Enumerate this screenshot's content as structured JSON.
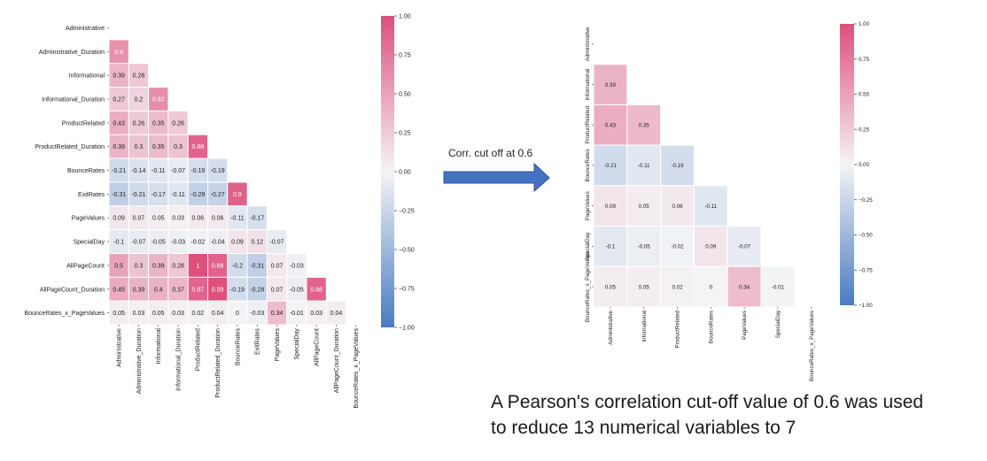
{
  "arrow_label": "Corr. cut off at 0.6",
  "caption": {
    "line1": "A Pearson's correlation cut-off value of 0.6 was used",
    "line2": "to reduce 13 numerical variables to 7"
  },
  "colors": {
    "negative": "#4a7bc0",
    "neutral": "#f4f4f6",
    "positive": "#de4f7c",
    "arrow": "#4472c4",
    "arrow_edge": "#2f528f"
  },
  "chart_data": [
    {
      "type": "heatmap",
      "variables": [
        "Administrative",
        "Administrative_Duration",
        "Informational",
        "Informational_Duration",
        "ProductRelated",
        "ProductRelated_Duration",
        "BounceRates",
        "ExitRates",
        "PageValues",
        "SpecialDay",
        "AllPageCount",
        "AllPageCount_Duration",
        "BounceRates_x_PageValues"
      ],
      "mask": "upper-triangle",
      "values": [
        [],
        [
          0.6
        ],
        [
          0.39,
          0.28
        ],
        [
          0.27,
          0.2,
          0.62
        ],
        [
          0.43,
          0.26,
          0.35,
          0.26
        ],
        [
          0.39,
          0.3,
          0.35,
          0.3,
          0.88
        ],
        [
          -0.21,
          -0.14,
          -0.11,
          -0.07,
          -0.19,
          -0.19
        ],
        [
          -0.31,
          -0.21,
          -0.17,
          -0.11,
          -0.29,
          -0.27,
          0.9
        ],
        [
          0.09,
          0.07,
          0.05,
          0.03,
          0.06,
          0.06,
          -0.11,
          -0.17
        ],
        [
          -0.1,
          -0.07,
          -0.05,
          -0.03,
          -0.02,
          -0.04,
          0.09,
          0.12,
          -0.07
        ],
        [
          0.5,
          0.3,
          0.39,
          0.28,
          1,
          0.88,
          -0.2,
          -0.31,
          0.07,
          -0.03
        ],
        [
          0.45,
          0.39,
          0.4,
          0.37,
          0.87,
          0.99,
          -0.19,
          -0.28,
          0.07,
          -0.05,
          0.88
        ],
        [
          0.05,
          0.03,
          0.05,
          0.03,
          0.02,
          0.04,
          0,
          -0.03,
          0.34,
          -0.01,
          0.03,
          0.04
        ]
      ],
      "colorbar": {
        "ticks": [
          "1.00",
          "0.75",
          "0.50",
          "0.25",
          "0.00",
          "−0.25",
          "−0.50",
          "−0.75",
          "−1.00"
        ],
        "range": [
          -1,
          1
        ]
      }
    },
    {
      "type": "heatmap",
      "variables": [
        "Administrative",
        "Informational",
        "ProductRelated",
        "BounceRates",
        "PageValues",
        "SpecialDay",
        "BounceRates_x_PageValues"
      ],
      "mask": "upper-triangle",
      "values": [
        [],
        [
          0.39
        ],
        [
          0.43,
          0.35
        ],
        [
          -0.21,
          -0.11,
          -0.19
        ],
        [
          0.09,
          0.05,
          0.06,
          -0.11
        ],
        [
          -0.1,
          -0.05,
          -0.02,
          0.09,
          -0.07
        ],
        [
          0.05,
          0.05,
          0.02,
          0,
          0.34,
          -0.01
        ]
      ],
      "colorbar": {
        "ticks": [
          "1.00",
          "0.75",
          "0.50",
          "0.25",
          "0.00",
          "−0.25",
          "−0.50",
          "−0.75",
          "−1.00"
        ],
        "range": [
          -1,
          1
        ]
      }
    }
  ]
}
